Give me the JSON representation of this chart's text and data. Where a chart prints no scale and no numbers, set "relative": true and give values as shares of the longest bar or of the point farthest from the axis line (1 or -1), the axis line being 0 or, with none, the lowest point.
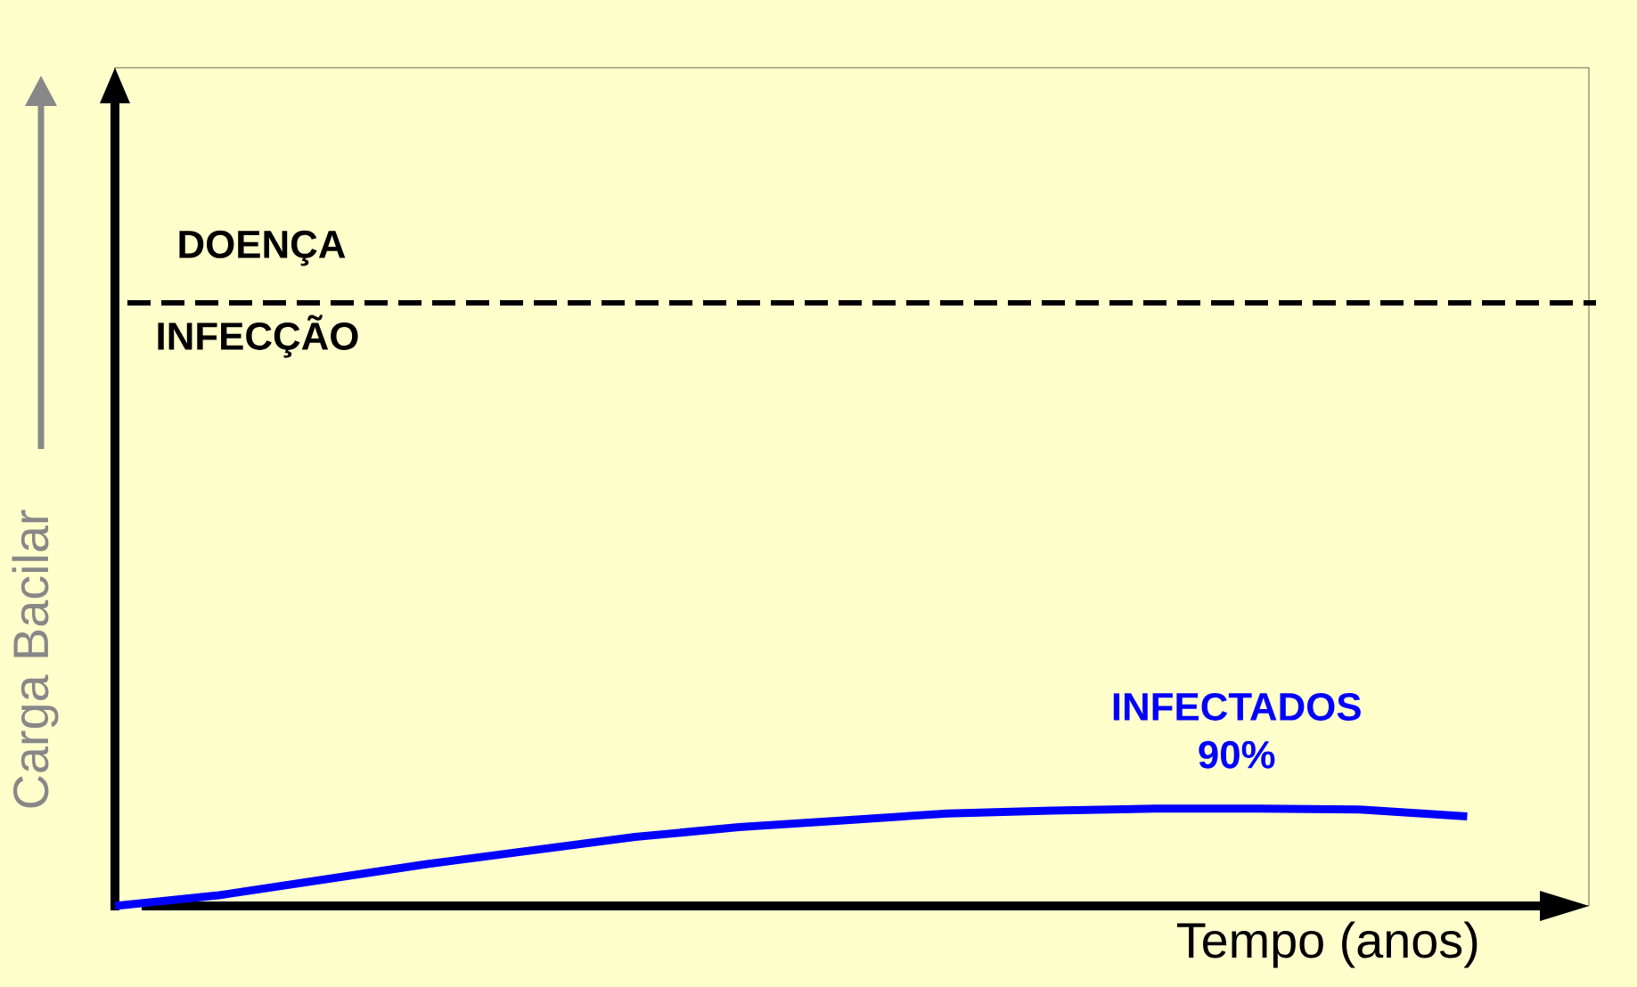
{
  "chart_data": {
    "type": "line",
    "relative": true,
    "marker": "none",
    "line_style": "solid",
    "xlabel": "Tempo (anos)",
    "ylabel": "Carga Bacilar",
    "categories": [
      null,
      null,
      null,
      null,
      null,
      null,
      null,
      null,
      null,
      null,
      null,
      null,
      null,
      null
    ],
    "series": [
      {
        "name": "INFECTADOS 90%",
        "color": "#0000ff",
        "values": [
          0,
          0.11,
          0.27,
          0.43,
          0.57,
          0.71,
          0.81,
          0.88,
          0.95,
          0.98,
          1,
          1,
          0.99,
          0.92
        ]
      }
    ],
    "ref_lines": [
      {
        "axis": "y",
        "value": 6.2,
        "color": "#000000",
        "line_style": "dashed"
      }
    ],
    "annotations": [
      "DOENÇA",
      "INFECÇÃO"
    ]
  }
}
